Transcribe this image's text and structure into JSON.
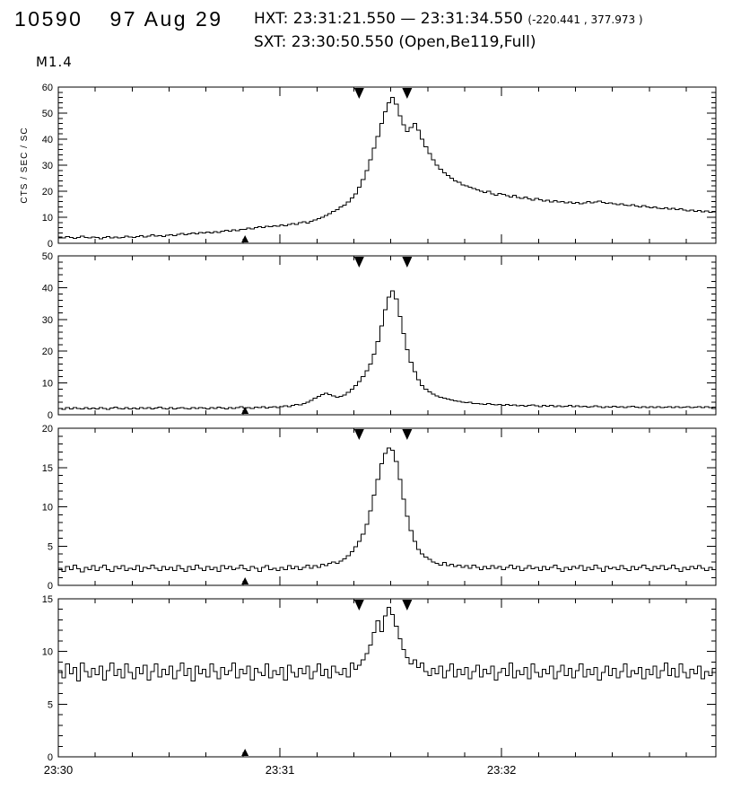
{
  "header": {
    "event_id": "10590",
    "date": "97 Aug 29",
    "hxt_line": "HXT: 23:31:21.550 — 23:31:34.550",
    "hxt_coords": "(-220.441 , 377.973 )",
    "sxt_line": "SXT: 23:30:50.550 (Open,Be119,Full)",
    "goes_class": "M1.4"
  },
  "chart_data": {
    "type": "line",
    "style": "step-histogram",
    "line_color": "#000000",
    "ylabel": "CTS / SEC / SC",
    "x_range_seconds": [
      0,
      178
    ],
    "x_start_time": "23:30:00",
    "time_step_seconds": 1,
    "x_minor_step": 10,
    "x_ticks": [
      {
        "t": 0,
        "label": "23:30"
      },
      {
        "t": 60,
        "label": "23:31"
      },
      {
        "t": 120,
        "label": "23:32"
      }
    ],
    "markers": {
      "hxt_interval_seconds": [
        81.55,
        94.55
      ],
      "sxt_time_seconds": 50.55
    },
    "panels": [
      {
        "name": "panel1",
        "ylim": [
          0,
          60
        ],
        "yticks": [
          0,
          10,
          20,
          30,
          40,
          50,
          60
        ],
        "yminor": 2,
        "values": [
          2.4,
          2.1,
          2.6,
          2.2,
          1.9,
          2.3,
          2.7,
          2.2,
          2.0,
          2.5,
          2.3,
          1.8,
          2.2,
          2.6,
          2.1,
          2.4,
          2.0,
          2.3,
          2.7,
          2.4,
          2.2,
          2.6,
          3.0,
          2.5,
          2.8,
          3.2,
          2.7,
          3.0,
          2.6,
          3.1,
          3.3,
          2.9,
          3.4,
          3.8,
          3.3,
          3.6,
          4.0,
          3.7,
          4.2,
          3.9,
          4.3,
          4.0,
          4.5,
          4.2,
          4.7,
          5.0,
          4.6,
          5.1,
          4.8,
          5.3,
          5.4,
          5.9,
          5.6,
          6.1,
          6.4,
          6.0,
          6.6,
          6.3,
          6.8,
          6.5,
          7.0,
          6.7,
          7.3,
          7.6,
          7.2,
          7.9,
          8.3,
          7.8,
          8.5,
          9.0,
          9.4,
          10.0,
          10.7,
          11.4,
          12.2,
          13.0,
          13.9,
          14.6,
          15.9,
          17.4,
          19.0,
          21.5,
          24.5,
          28.0,
          32.0,
          36.5,
          41.0,
          46.0,
          50.5,
          54.0,
          56.0,
          53.5,
          49.0,
          45.5,
          43.0,
          44.5,
          46.0,
          43.5,
          40.0,
          37.0,
          34.5,
          32.0,
          30.0,
          28.5,
          27.0,
          26.0,
          25.0,
          24.0,
          23.5,
          22.5,
          22.0,
          21.5,
          21.0,
          20.5,
          20.0,
          19.5,
          20.0,
          19.0,
          18.5,
          19.2,
          18.8,
          18.2,
          17.8,
          18.4,
          17.6,
          17.2,
          17.8,
          17.0,
          16.6,
          17.2,
          16.8,
          16.2,
          16.6,
          15.9,
          16.3,
          15.8,
          16.1,
          15.6,
          15.9,
          15.4,
          15.7,
          15.2,
          15.6,
          16.0,
          15.5,
          15.9,
          16.2,
          15.7,
          15.3,
          15.6,
          15.1,
          14.8,
          15.2,
          14.7,
          14.4,
          14.8,
          14.3,
          14.0,
          14.4,
          13.9,
          13.6,
          14.0,
          13.5,
          13.2,
          13.6,
          13.1,
          13.4,
          12.9,
          13.2,
          12.7,
          12.4,
          12.8,
          12.3,
          12.6,
          12.1,
          12.4,
          11.9,
          12.2,
          11.8,
          12.0,
          11.7
        ]
      },
      {
        "name": "panel2",
        "ylim": [
          0,
          50
        ],
        "yticks": [
          0,
          10,
          20,
          30,
          40,
          50
        ],
        "yminor": 2,
        "values": [
          2.0,
          1.7,
          2.2,
          1.9,
          2.3,
          2.0,
          1.8,
          2.2,
          1.9,
          2.1,
          1.8,
          2.3,
          2.0,
          1.7,
          2.1,
          2.4,
          2.0,
          1.8,
          2.2,
          1.9,
          2.1,
          1.8,
          2.3,
          2.0,
          2.2,
          1.9,
          2.1,
          2.4,
          2.0,
          1.8,
          2.2,
          1.9,
          2.1,
          2.3,
          2.0,
          1.8,
          2.2,
          2.0,
          2.3,
          2.1,
          1.9,
          2.2,
          2.0,
          2.4,
          2.1,
          1.9,
          2.3,
          2.0,
          2.2,
          2.5,
          2.1,
          2.3,
          2.0,
          2.4,
          2.2,
          2.5,
          2.1,
          2.4,
          2.6,
          2.3,
          2.5,
          2.8,
          2.6,
          3.0,
          3.3,
          3.1,
          3.6,
          4.0,
          4.5,
          5.2,
          5.8,
          6.3,
          6.8,
          6.4,
          5.9,
          5.5,
          5.8,
          6.2,
          7.0,
          8.0,
          9.2,
          10.5,
          12.0,
          13.8,
          16.0,
          19.0,
          23.0,
          28.0,
          33.0,
          37.0,
          39.0,
          36.5,
          31.0,
          25.5,
          20.5,
          16.5,
          13.5,
          11.0,
          9.2,
          8.0,
          7.2,
          6.5,
          6.0,
          5.5,
          5.2,
          4.9,
          4.6,
          4.4,
          4.2,
          4.0,
          3.8,
          3.9,
          3.6,
          3.5,
          3.4,
          3.3,
          3.5,
          3.2,
          3.1,
          3.3,
          3.0,
          3.2,
          2.9,
          3.1,
          2.8,
          3.0,
          2.7,
          2.9,
          3.1,
          2.8,
          2.6,
          2.9,
          2.7,
          3.0,
          2.6,
          2.8,
          2.5,
          2.7,
          2.9,
          2.6,
          2.8,
          2.5,
          2.7,
          2.4,
          2.6,
          2.8,
          2.5,
          2.3,
          2.6,
          2.4,
          2.7,
          2.4,
          2.6,
          2.3,
          2.5,
          2.7,
          2.4,
          2.2,
          2.5,
          2.3,
          2.6,
          2.3,
          2.5,
          2.2,
          2.4,
          2.6,
          2.3,
          2.5,
          2.2,
          2.4,
          2.5,
          2.2,
          2.4,
          2.6,
          2.3,
          2.5,
          2.2,
          2.4,
          2.1,
          2.3,
          2.2
        ]
      },
      {
        "name": "panel3",
        "ylim": [
          0,
          20
        ],
        "yticks": [
          0,
          5,
          10,
          15,
          20
        ],
        "yminor": 1,
        "values": [
          2.2,
          1.8,
          2.4,
          2.0,
          2.6,
          2.1,
          1.7,
          2.3,
          2.0,
          2.5,
          1.9,
          2.3,
          2.6,
          2.0,
          1.8,
          2.4,
          2.1,
          2.5,
          1.9,
          2.2,
          2.0,
          2.5,
          1.8,
          2.3,
          2.1,
          2.6,
          2.2,
          1.9,
          2.4,
          2.0,
          2.3,
          1.9,
          2.5,
          2.1,
          1.8,
          2.4,
          2.0,
          2.6,
          2.2,
          1.9,
          2.4,
          2.0,
          2.3,
          1.8,
          2.5,
          2.1,
          2.4,
          2.0,
          2.2,
          2.6,
          2.1,
          1.9,
          2.4,
          2.2,
          1.8,
          2.3,
          2.5,
          2.0,
          2.2,
          1.9,
          2.3,
          2.0,
          2.5,
          2.1,
          2.4,
          2.0,
          2.3,
          2.6,
          2.2,
          2.5,
          2.3,
          2.7,
          2.5,
          2.8,
          3.0,
          2.8,
          3.1,
          3.4,
          3.8,
          4.3,
          4.9,
          5.6,
          6.5,
          7.8,
          9.5,
          11.5,
          13.5,
          15.5,
          16.8,
          17.5,
          17.2,
          15.8,
          13.5,
          11.0,
          8.8,
          7.0,
          5.6,
          4.6,
          4.0,
          3.6,
          3.3,
          3.0,
          2.8,
          2.6,
          2.9,
          2.5,
          2.7,
          2.4,
          2.6,
          2.3,
          2.5,
          2.2,
          2.6,
          2.3,
          2.0,
          2.4,
          2.1,
          2.5,
          2.2,
          2.4,
          2.0,
          2.3,
          2.6,
          2.1,
          2.4,
          1.9,
          2.2,
          2.5,
          2.1,
          2.3,
          1.9,
          2.4,
          2.0,
          2.3,
          2.6,
          2.1,
          1.8,
          2.3,
          2.0,
          2.4,
          2.2,
          2.5,
          1.9,
          2.3,
          2.0,
          2.6,
          2.2,
          1.8,
          2.4,
          2.1,
          2.3,
          2.0,
          2.5,
          2.1,
          1.9,
          2.4,
          2.0,
          2.3,
          2.6,
          2.1,
          1.9,
          2.4,
          2.1,
          2.5,
          2.0,
          2.2,
          2.6,
          2.1,
          1.8,
          2.3,
          2.0,
          2.4,
          2.1,
          2.5,
          2.2,
          1.9,
          2.3,
          2.0,
          2.4,
          2.1,
          2.2
        ]
      },
      {
        "name": "panel4",
        "ylim": [
          0,
          15
        ],
        "yticks": [
          0,
          5,
          10,
          15
        ],
        "yminor": 1,
        "values": [
          8.2,
          7.5,
          8.8,
          7.9,
          8.5,
          7.2,
          8.9,
          8.1,
          7.6,
          8.4,
          7.8,
          8.6,
          7.3,
          8.2,
          8.9,
          7.7,
          8.3,
          7.5,
          8.8,
          8.0,
          7.4,
          8.5,
          7.9,
          8.7,
          7.3,
          8.1,
          8.8,
          7.6,
          8.3,
          7.8,
          8.6,
          7.4,
          8.2,
          8.9,
          7.7,
          8.4,
          7.2,
          8.6,
          7.9,
          8.3,
          7.6,
          8.8,
          8.1,
          7.4,
          8.5,
          7.8,
          8.2,
          8.9,
          7.5,
          8.3,
          7.9,
          8.6,
          7.3,
          8.4,
          8.0,
          7.7,
          8.8,
          7.5,
          8.2,
          7.8,
          8.5,
          7.3,
          8.7,
          8.0,
          7.6,
          8.4,
          7.9,
          8.6,
          7.4,
          8.1,
          8.8,
          7.7,
          8.3,
          7.5,
          8.6,
          8.0,
          7.8,
          8.4,
          7.6,
          8.9,
          8.3,
          8.7,
          9.2,
          9.8,
          10.6,
          11.8,
          12.9,
          11.9,
          13.4,
          14.2,
          13.5,
          12.4,
          11.2,
          10.2,
          9.4,
          8.8,
          9.2,
          8.5,
          8.9,
          8.1,
          7.7,
          8.4,
          7.9,
          8.6,
          7.5,
          8.2,
          8.8,
          7.6,
          8.3,
          7.8,
          8.5,
          7.4,
          8.1,
          8.7,
          7.6,
          8.3,
          7.9,
          8.6,
          7.3,
          8.0,
          8.4,
          7.7,
          8.9,
          7.5,
          8.2,
          7.8,
          8.5,
          7.4,
          8.8,
          8.0,
          7.6,
          8.3,
          7.9,
          8.6,
          7.4,
          8.1,
          8.7,
          7.7,
          8.4,
          7.5,
          8.2,
          8.8,
          7.6,
          8.3,
          7.8,
          8.5,
          7.3,
          8.0,
          8.6,
          7.7,
          8.4,
          7.5,
          8.1,
          8.8,
          7.6,
          8.2,
          7.9,
          8.5,
          7.4,
          8.3,
          7.8,
          8.6,
          7.5,
          8.2,
          8.9,
          7.7,
          8.4,
          7.6,
          8.8,
          8.0,
          7.5,
          8.3,
          7.9,
          8.6,
          7.4,
          8.1,
          7.7,
          8.4,
          8.0,
          7.6,
          8.2
        ]
      }
    ]
  }
}
